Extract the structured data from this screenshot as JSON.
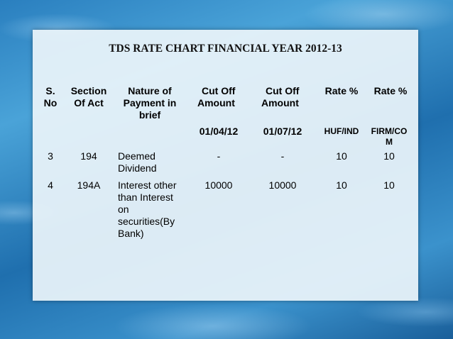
{
  "title": "TDS RATE CHART FINANCIAL YEAR 2012-13",
  "headers": {
    "sno": [
      "S.",
      "No"
    ],
    "section": [
      "Section",
      "Of Act"
    ],
    "nature": [
      "Nature of",
      "Payment in",
      "brief"
    ],
    "cutoff1": [
      "Cut Off",
      "Amount"
    ],
    "cutoff2": [
      "Cut Off",
      "Amount"
    ],
    "rate1": "Rate %",
    "rate2": "Rate %"
  },
  "subheaders": {
    "cutoff1": "01/04/12",
    "cutoff2": "01/07/12",
    "rate1": "HUF/IND",
    "rate2": [
      "FIRM/CO",
      "M"
    ]
  },
  "rows": [
    {
      "sno": "3",
      "section": "194",
      "nature": [
        "Deemed",
        "Dividend"
      ],
      "cutoff1": "-",
      "cutoff2": "-",
      "rate1": "10",
      "rate2": "10"
    },
    {
      "sno": "4",
      "section": "194A",
      "nature": [
        "Interest other",
        "than Interest",
        "on",
        "securities(By",
        "Bank)"
      ],
      "cutoff1": "10000",
      "cutoff2": "10000",
      "rate1": "10",
      "rate2": "10"
    }
  ]
}
